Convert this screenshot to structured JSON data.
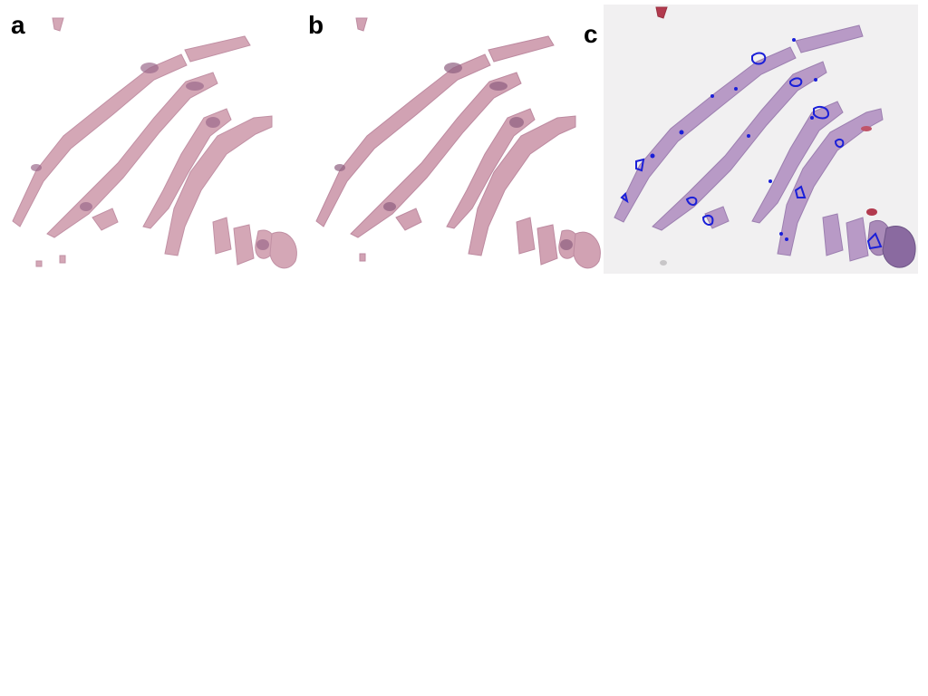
{
  "figure": {
    "panels": [
      {
        "label": "a"
      },
      {
        "label": "b"
      },
      {
        "label": "c"
      }
    ],
    "colors": {
      "tissue_mask": "#d4a7b6",
      "tissue_dark": "#9c6a8c",
      "tissue_he": "#b89ac6",
      "he_background": "#f1f0f1",
      "annotation_outline": "#1a1fd8",
      "blood": "#b23a4e"
    }
  }
}
